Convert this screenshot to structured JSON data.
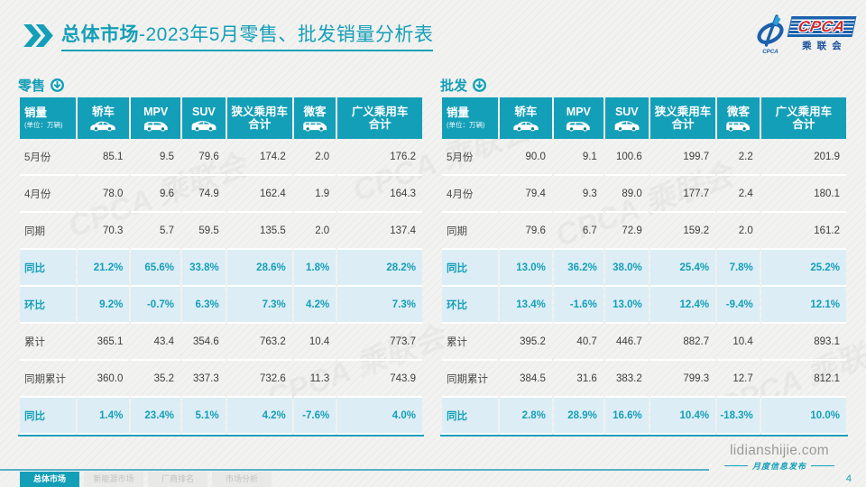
{
  "page": {
    "title": {
      "highlight": "总体市场",
      "rest": "-2023年5月零售、批发销量分析表"
    },
    "logo": {
      "name": "CPCA",
      "subtitle": "乘联会",
      "small_text": "CPCA"
    },
    "watermark_text": "CPCA 乘联会",
    "page_number": "4"
  },
  "tables": [
    {
      "id": "retail",
      "label": "零售",
      "header": {
        "first": {
          "title": "销量",
          "unit": "(单位：万辆)"
        },
        "columns": [
          {
            "label": "轿车",
            "icon": "sedan-icon"
          },
          {
            "label": "MPV",
            "icon": "mpv-icon"
          },
          {
            "label": "SUV",
            "icon": "suv-icon"
          },
          {
            "label": "狭义乘用车",
            "label2": "合计"
          },
          {
            "label": "微客",
            "icon": "van-icon"
          },
          {
            "label": "广义乘用车",
            "label2": "合计"
          }
        ]
      },
      "rows": [
        {
          "label": "5月份",
          "values": [
            "85.1",
            "9.5",
            "79.6",
            "174.2",
            "2.0",
            "176.2"
          ],
          "emphasis": false
        },
        {
          "label": "4月份",
          "values": [
            "78.0",
            "9.6",
            "74.9",
            "162.4",
            "1.9",
            "164.3"
          ],
          "emphasis": false
        },
        {
          "label": "同期",
          "values": [
            "70.3",
            "5.7",
            "59.5",
            "135.5",
            "2.0",
            "137.4"
          ],
          "emphasis": false
        },
        {
          "label": "同比",
          "values": [
            "21.2%",
            "65.6%",
            "33.8%",
            "28.6%",
            "1.8%",
            "28.2%"
          ],
          "emphasis": true
        },
        {
          "label": "环比",
          "values": [
            "9.2%",
            "-0.7%",
            "6.3%",
            "7.3%",
            "4.2%",
            "7.3%"
          ],
          "emphasis": true
        },
        {
          "label": "累计",
          "values": [
            "365.1",
            "43.4",
            "354.6",
            "763.2",
            "10.4",
            "773.7"
          ],
          "emphasis": false
        },
        {
          "label": "同期累计",
          "values": [
            "360.0",
            "35.2",
            "337.3",
            "732.6",
            "11.3",
            "743.9"
          ],
          "emphasis": false
        },
        {
          "label": "同比",
          "values": [
            "1.4%",
            "23.4%",
            "5.1%",
            "4.2%",
            "-7.6%",
            "4.0%"
          ],
          "emphasis": true
        }
      ]
    },
    {
      "id": "wholesale",
      "label": "批发",
      "header": {
        "first": {
          "title": "销量",
          "unit": "(单位：万辆)"
        },
        "columns": [
          {
            "label": "轿车",
            "icon": "sedan-icon"
          },
          {
            "label": "MPV",
            "icon": "mpv-icon"
          },
          {
            "label": "SUV",
            "icon": "suv-icon"
          },
          {
            "label": "狭义乘用车",
            "label2": "合计"
          },
          {
            "label": "微客",
            "icon": "van-icon"
          },
          {
            "label": "广义乘用车",
            "label2": "合计"
          }
        ]
      },
      "rows": [
        {
          "label": "5月份",
          "values": [
            "90.0",
            "9.1",
            "100.6",
            "199.7",
            "2.2",
            "201.9"
          ],
          "emphasis": false
        },
        {
          "label": "4月份",
          "values": [
            "79.4",
            "9.3",
            "89.0",
            "177.7",
            "2.4",
            "180.1"
          ],
          "emphasis": false
        },
        {
          "label": "同期",
          "values": [
            "79.6",
            "6.7",
            "72.9",
            "159.2",
            "2.0",
            "161.2"
          ],
          "emphasis": false
        },
        {
          "label": "同比",
          "values": [
            "13.0%",
            "36.2%",
            "38.0%",
            "25.4%",
            "7.8%",
            "25.2%"
          ],
          "emphasis": true
        },
        {
          "label": "环比",
          "values": [
            "13.4%",
            "-1.6%",
            "13.0%",
            "12.4%",
            "-9.4%",
            "12.1%"
          ],
          "emphasis": true
        },
        {
          "label": "累计",
          "values": [
            "395.2",
            "40.7",
            "446.7",
            "882.7",
            "10.4",
            "893.1"
          ],
          "emphasis": false
        },
        {
          "label": "同期累计",
          "values": [
            "384.5",
            "31.6",
            "383.2",
            "799.3",
            "12.7",
            "812.1"
          ],
          "emphasis": false
        },
        {
          "label": "同比",
          "values": [
            "2.8%",
            "28.9%",
            "16.6%",
            "10.4%",
            "-18.3%",
            "10.0%"
          ],
          "emphasis": true
        }
      ]
    }
  ],
  "footer": {
    "tabs": [
      {
        "label": "总体市场",
        "active": true
      },
      {
        "label": "新能源市场",
        "active": false
      },
      {
        "label": "厂商排名",
        "active": false
      },
      {
        "label": "市场分析",
        "active": false
      }
    ],
    "site": "lidianshijie.com",
    "site_caption": "月度信息发布"
  },
  "colors": {
    "accent": "#149fb8",
    "accent_dark": "#0c7d93",
    "highlight_row_bg": "#dcedf5",
    "footer_line": "#58b3c7",
    "logo_blue": "#1a60ac",
    "logo_red": "#d42a2a"
  }
}
